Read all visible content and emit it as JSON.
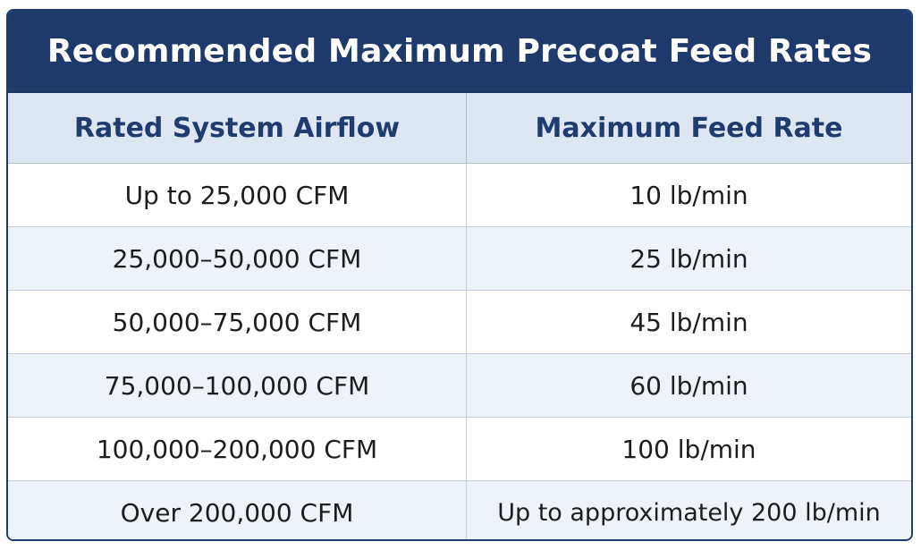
{
  "table": {
    "title": "Recommended Maximum Precoat Feed Rates",
    "headers": {
      "airflow": "Rated System Airflow",
      "feed_rate": "Maximum Feed Rate"
    },
    "rows": [
      {
        "airflow": "Up to 25,000 CFM",
        "feed_rate": "10 lb/min"
      },
      {
        "airflow": "25,000–50,000 CFM",
        "feed_rate": "25 lb/min"
      },
      {
        "airflow": "50,000–75,000 CFM",
        "feed_rate": "45 lb/min"
      },
      {
        "airflow": "75,000–100,000 CFM",
        "feed_rate": "60 lb/min"
      },
      {
        "airflow": "100,000–200,000 CFM",
        "feed_rate": "100 lb/min"
      },
      {
        "airflow": "Over 200,000 CFM",
        "feed_rate": "Up to approximately 200 lb/min"
      }
    ]
  },
  "colors": {
    "title_background": "#1e3a6b",
    "header_background": "#dde6f3",
    "header_text": "#1f3c6e",
    "alt_row_background": "#eef3f9"
  }
}
